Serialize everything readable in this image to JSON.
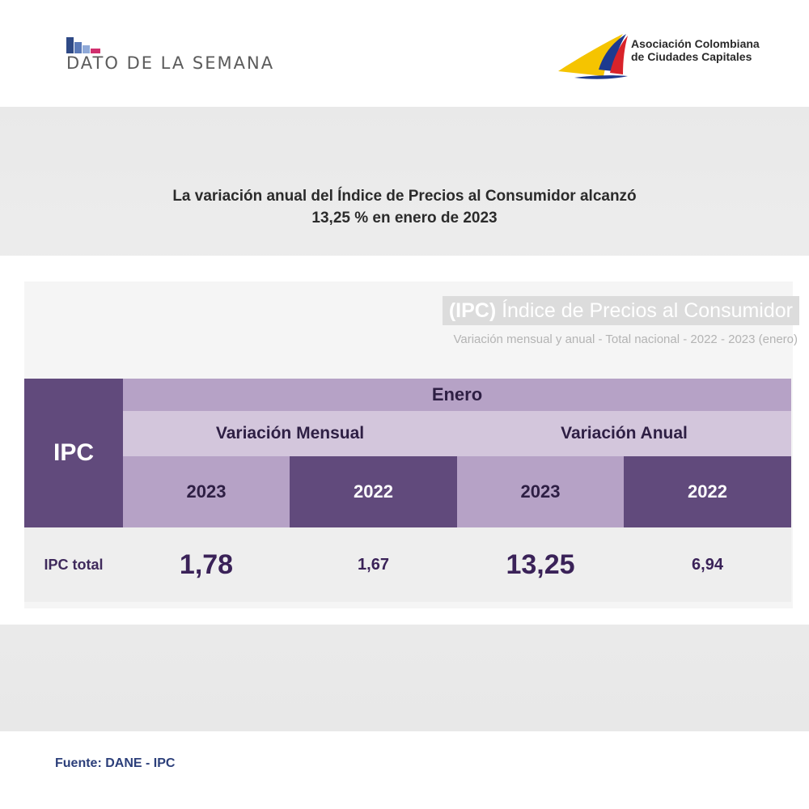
{
  "header": {
    "brand_title": "DATO DE LA SEMANA",
    "org_name_line1": "Asociación Colombiana",
    "org_name_line2": "de Ciudades Capitales"
  },
  "headline": {
    "line1": "La variación anual del Índice de Precios al Consumidor alcanzó",
    "line2": "13,25 % en enero de 2023"
  },
  "table": {
    "title_bold": "(IPC)",
    "title_rest": " Índice de Precios al Consumidor",
    "subtitle": "Variación mensual  y anual - Total nacional  - 2022 - 2023 (enero)",
    "corner_label": "IPC",
    "month_header": "Enero",
    "group_headers": [
      "Variación Mensual",
      "Variación Anual"
    ],
    "year_headers": [
      "2023",
      "2022",
      "2023",
      "2022"
    ],
    "rows": [
      {
        "label": "IPC total",
        "values": [
          "1,78",
          "1,67",
          "13,25",
          "6,94"
        ]
      }
    ]
  },
  "footer": {
    "source": "Fuente: DANE - IPC"
  },
  "colors": {
    "purple_dark": "#614a7c",
    "purple_mid": "#b6a2c6",
    "purple_light": "#d3c6dc",
    "value_text": "#3a2258",
    "source_text": "#2c3f7a"
  }
}
